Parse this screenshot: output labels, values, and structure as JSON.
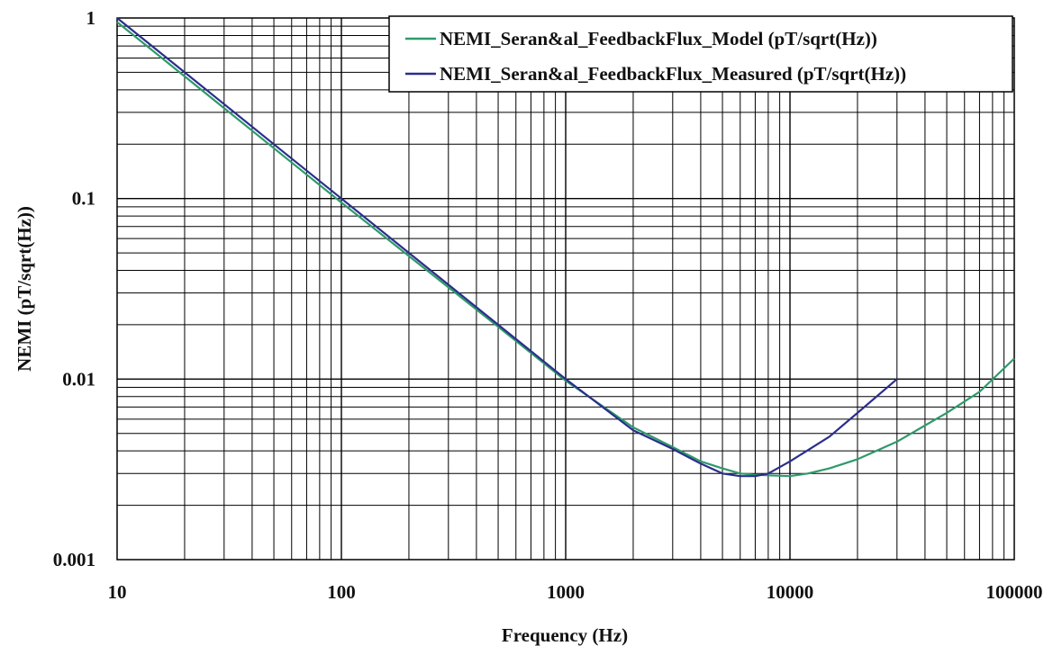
{
  "chart_data": {
    "type": "line",
    "title": "",
    "xlabel": "Frequency (Hz)",
    "ylabel": "NEMI (pT/sqrt(Hz))",
    "xscale": "log",
    "yscale": "log",
    "xlim": [
      10,
      100000
    ],
    "ylim": [
      0.001,
      1
    ],
    "grid": true,
    "legend_position": "top-right",
    "x_ticks": [
      "10",
      "100",
      "1000",
      "10000",
      "100000"
    ],
    "y_ticks": [
      "0.001",
      "0.01",
      "0.1",
      "1"
    ],
    "series": [
      {
        "name": "NEMI_Seran&al_FeedbackFlux_Model (pT/sqrt(Hz))",
        "color": "#2e9a6a",
        "points": [
          [
            10,
            0.95
          ],
          [
            20,
            0.475
          ],
          [
            50,
            0.19
          ],
          [
            100,
            0.095
          ],
          [
            200,
            0.048
          ],
          [
            500,
            0.0195
          ],
          [
            1000,
            0.0098
          ],
          [
            2000,
            0.0054
          ],
          [
            3000,
            0.0042
          ],
          [
            4000,
            0.0035
          ],
          [
            5000,
            0.0032
          ],
          [
            6000,
            0.003
          ],
          [
            7000,
            0.00295
          ],
          [
            8000,
            0.00293
          ],
          [
            10000,
            0.0029
          ],
          [
            12000,
            0.003
          ],
          [
            15000,
            0.0032
          ],
          [
            20000,
            0.0036
          ],
          [
            30000,
            0.0045
          ],
          [
            50000,
            0.0065
          ],
          [
            70000,
            0.0085
          ],
          [
            100000,
            0.013
          ]
        ]
      },
      {
        "name": "NEMI_Seran&al_FeedbackFlux_Measured (pT/sqrt(Hz))",
        "color": "#2b2e8c",
        "points": [
          [
            10,
            1.0
          ],
          [
            20,
            0.5
          ],
          [
            50,
            0.2
          ],
          [
            100,
            0.1
          ],
          [
            200,
            0.05
          ],
          [
            500,
            0.02
          ],
          [
            1000,
            0.01
          ],
          [
            2000,
            0.0052
          ],
          [
            3000,
            0.0041
          ],
          [
            4000,
            0.0034
          ],
          [
            5000,
            0.003
          ],
          [
            6000,
            0.0029
          ],
          [
            7000,
            0.0029
          ],
          [
            8000,
            0.003
          ],
          [
            10000,
            0.0035
          ],
          [
            15000,
            0.0048
          ],
          [
            20000,
            0.0065
          ],
          [
            30000,
            0.01
          ]
        ]
      }
    ]
  }
}
